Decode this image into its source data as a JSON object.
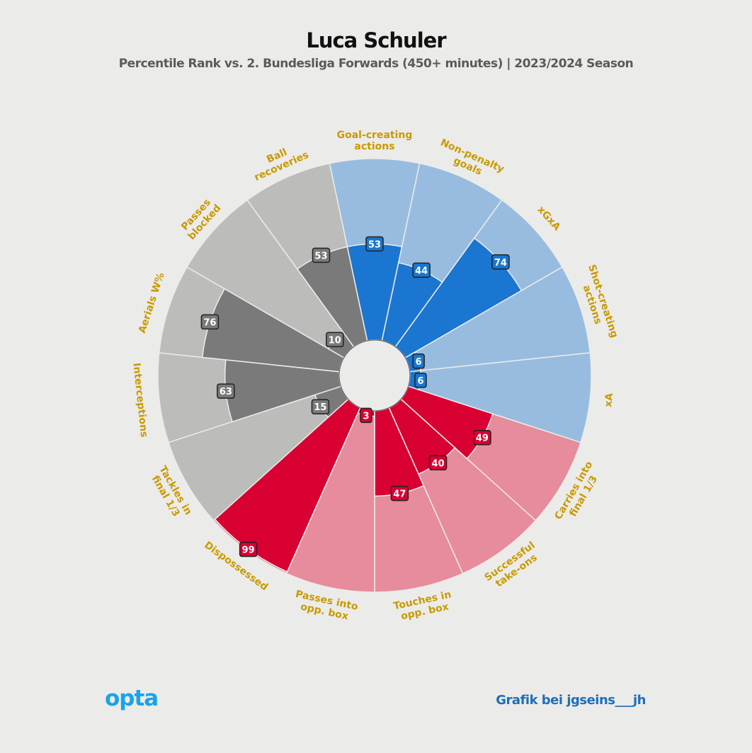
{
  "header": {
    "title": "Luca Schuler",
    "subtitle": "Percentile Rank vs. 2. Bundesliga Forwards (450+ minutes) | 2023/2024 Season"
  },
  "footer": {
    "logo": "opta",
    "credit": "Grafik bei jgseins___jh"
  },
  "colors": {
    "background": "#ebebe9",
    "attack_dark": "#1a76d0",
    "attack_light": "#97bcdf",
    "possession_dark": "#d90032",
    "possession_light": "#e68c9c",
    "defense_dark": "#7a7a7a",
    "defense_light": "#bcbcba",
    "label": "#c99a00"
  },
  "chart_data": {
    "type": "polar-bar",
    "max": 100,
    "categories": [
      {
        "label": "Goal-creating actions",
        "value": 53,
        "group": "attack"
      },
      {
        "label": "Non-penalty goals",
        "value": 44,
        "group": "attack"
      },
      {
        "label": "xGxA",
        "value": 74,
        "group": "attack"
      },
      {
        "label": "Shot-creating actions",
        "value": 6,
        "group": "attack"
      },
      {
        "label": "xA",
        "value": 6,
        "group": "attack"
      },
      {
        "label": "Carries into final 1/3",
        "value": 49,
        "group": "possession"
      },
      {
        "label": "Successful take-ons",
        "value": 40,
        "group": "possession"
      },
      {
        "label": "Touches in opp. box",
        "value": 47,
        "group": "possession"
      },
      {
        "label": "Passes into opp. box",
        "value": 3,
        "group": "possession"
      },
      {
        "label": "Dispossessed",
        "value": 99,
        "group": "possession"
      },
      {
        "label": "Tackles in final 1/3",
        "value": 15,
        "group": "defense"
      },
      {
        "label": "Interceptions",
        "value": 63,
        "group": "defense"
      },
      {
        "label": "Aerials W%",
        "value": 76,
        "group": "defense"
      },
      {
        "label": "Passes blocked",
        "value": 10,
        "group": "defense"
      },
      {
        "label": "Ball recoveries",
        "value": 53,
        "group": "defense"
      }
    ]
  }
}
